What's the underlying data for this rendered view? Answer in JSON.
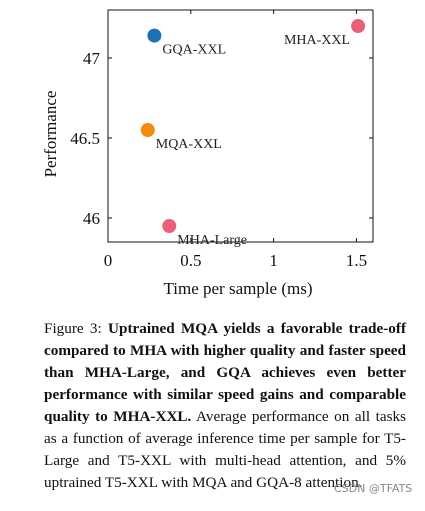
{
  "chart_data": {
    "type": "scatter",
    "xlabel": "Time per sample (ms)",
    "ylabel": "Performance",
    "xlim": [
      0,
      1.6
    ],
    "ylim": [
      45.85,
      47.3
    ],
    "xticks": [
      "0",
      "0.5",
      "1",
      "1.5"
    ],
    "xtick_values": [
      0,
      0.5,
      1,
      1.5
    ],
    "yticks": [
      "46",
      "46.5",
      "47"
    ],
    "ytick_values": [
      46,
      46.5,
      47
    ],
    "grid": false,
    "points": [
      {
        "label": "MHA-XXL",
        "x": 1.51,
        "y": 47.2,
        "color": "#e8607a"
      },
      {
        "label": "GQA-XXL",
        "x": 0.28,
        "y": 47.14,
        "color": "#1f6fb5"
      },
      {
        "label": "MQA-XXL",
        "x": 0.24,
        "y": 46.55,
        "color": "#f28c0c"
      },
      {
        "label": "MHA-Large",
        "x": 0.37,
        "y": 45.95,
        "color": "#e8607a"
      }
    ]
  },
  "caption": {
    "lead": "Figure 3: ",
    "bold": "Uptrained MQA yields a favorable trade-off compared to MHA with higher quality and faster speed than MHA-Large, and GQA achieves even better performance with similar speed gains and comparable quality to MHA-XXL.",
    "rest": " Average performance on all tasks as a function of average inference time per sample for T5-Large and T5-XXL with multi-head attention, and 5% uptrained T5-XXL with MQA and GQA-8 attention."
  },
  "watermark": "CSDN @TFATS"
}
